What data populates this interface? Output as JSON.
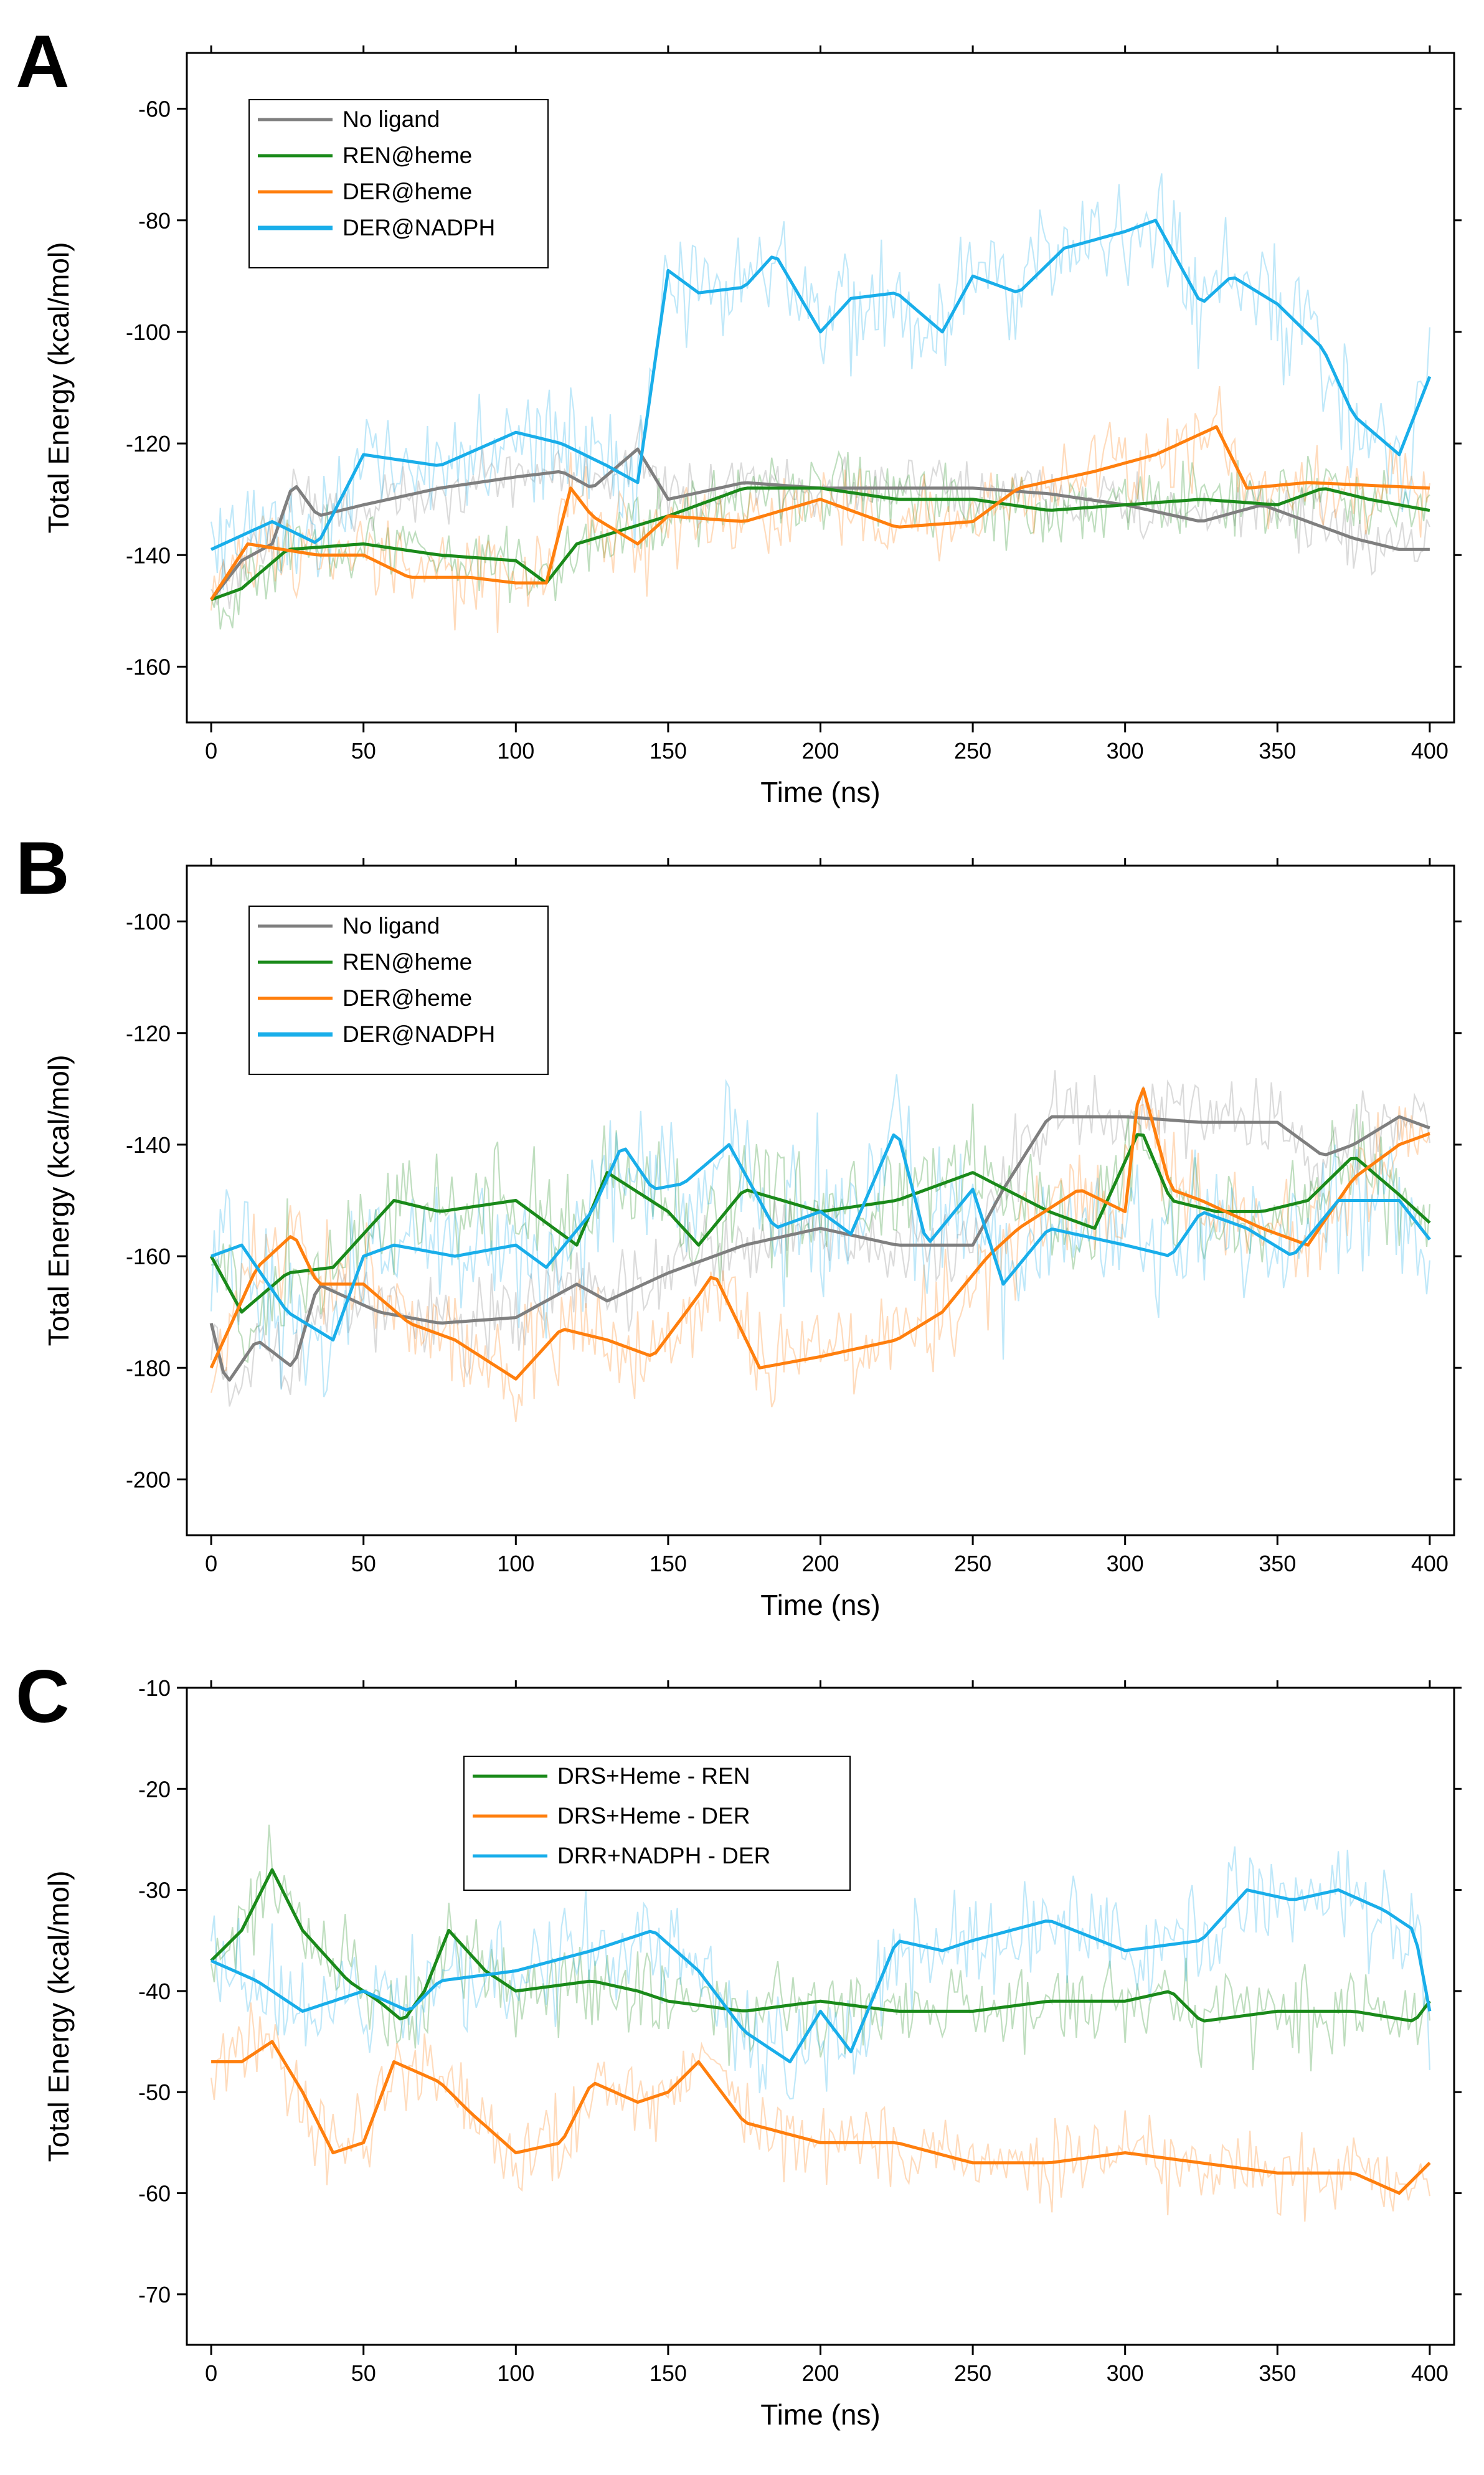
{
  "figure": {
    "panels": [
      "A",
      "B",
      "C"
    ]
  },
  "chart_data": [
    {
      "panel": "A",
      "type": "line",
      "xlabel": "Time (ns)",
      "ylabel": "Total Energy (kcal/mol)",
      "xlim": [
        -8,
        408
      ],
      "ylim": [
        -170,
        -50
      ],
      "xticks": [
        0,
        50,
        100,
        150,
        200,
        250,
        300,
        350,
        400
      ],
      "yticks": [
        -160,
        -140,
        -120,
        -100,
        -80,
        -60
      ],
      "legend": "top-left",
      "series": [
        {
          "name": "No ligand",
          "color": "#7f7f7f",
          "noise": 5,
          "x": [
            0,
            10,
            20,
            27,
            35,
            50,
            75,
            100,
            115,
            125,
            140,
            150,
            175,
            200,
            225,
            250,
            275,
            300,
            325,
            345,
            360,
            375,
            390,
            400
          ],
          "y": [
            -148,
            -141,
            -138,
            -127,
            -133,
            -131,
            -128,
            -126,
            -125,
            -128,
            -121,
            -130,
            -127,
            -128,
            -128,
            -128,
            -129,
            -131,
            -134,
            -131,
            -134,
            -137,
            -139,
            -139
          ]
        },
        {
          "name": "REN@heme",
          "color": "#1a8a1a",
          "noise": 6,
          "x": [
            0,
            10,
            25,
            50,
            75,
            100,
            110,
            120,
            150,
            175,
            200,
            225,
            250,
            275,
            300,
            325,
            350,
            365,
            380,
            400
          ],
          "y": [
            -148,
            -146,
            -139,
            -138,
            -140,
            -141,
            -145,
            -138,
            -133,
            -128,
            -128,
            -130,
            -130,
            -132,
            -131,
            -130,
            -131,
            -128,
            -130,
            -132
          ]
        },
        {
          "name": "DER@heme",
          "color": "#ff7f0e",
          "noise": 7,
          "x": [
            0,
            12,
            35,
            50,
            65,
            85,
            100,
            110,
            118,
            125,
            140,
            150,
            175,
            200,
            225,
            250,
            265,
            290,
            310,
            330,
            340,
            360,
            400
          ],
          "y": [
            -148,
            -138,
            -140,
            -140,
            -144,
            -144,
            -145,
            -145,
            -128,
            -133,
            -138,
            -133,
            -134,
            -130,
            -135,
            -134,
            -128,
            -125,
            -122,
            -117,
            -128,
            -127,
            -128
          ]
        },
        {
          "name": "DER@NADPH",
          "color": "#19aeea",
          "noise": 10,
          "x": [
            0,
            20,
            35,
            50,
            75,
            100,
            115,
            130,
            140,
            150,
            160,
            175,
            185,
            200,
            210,
            225,
            240,
            250,
            265,
            280,
            300,
            310,
            325,
            335,
            350,
            365,
            375,
            390,
            400
          ],
          "y": [
            -139,
            -134,
            -138,
            -122,
            -124,
            -118,
            -120,
            -124,
            -127,
            -89,
            -93,
            -92,
            -86,
            -100,
            -94,
            -93,
            -100,
            -90,
            -93,
            -85,
            -82,
            -80,
            -95,
            -90,
            -95,
            -103,
            -115,
            -122,
            -108
          ]
        }
      ]
    },
    {
      "panel": "B",
      "type": "line",
      "xlabel": "Time (ns)",
      "ylabel": "Total Energy (kcal/mol)",
      "xlim": [
        -8,
        408
      ],
      "ylim": [
        -210,
        -90
      ],
      "xticks": [
        0,
        50,
        100,
        150,
        200,
        250,
        300,
        350,
        400
      ],
      "yticks": [
        -200,
        -180,
        -160,
        -140,
        -120,
        -100
      ],
      "legend": "top-left",
      "series": [
        {
          "name": "No ligand",
          "color": "#7f7f7f",
          "noise": 7,
          "x": [
            0,
            5,
            15,
            27,
            35,
            55,
            75,
            100,
            120,
            130,
            150,
            175,
            200,
            225,
            250,
            260,
            275,
            300,
            325,
            350,
            365,
            375,
            390,
            400
          ],
          "y": [
            -172,
            -183,
            -175,
            -180,
            -165,
            -170,
            -172,
            -171,
            -165,
            -168,
            -163,
            -158,
            -155,
            -158,
            -158,
            -148,
            -135,
            -135,
            -136,
            -136,
            -142,
            -140,
            -135,
            -137
          ]
        },
        {
          "name": "REN@heme",
          "color": "#1a8a1a",
          "noise": 9,
          "x": [
            0,
            10,
            25,
            40,
            60,
            75,
            100,
            120,
            130,
            150,
            160,
            175,
            200,
            225,
            250,
            275,
            290,
            305,
            315,
            330,
            345,
            360,
            375,
            390,
            400
          ],
          "y": [
            -160,
            -170,
            -163,
            -162,
            -150,
            -152,
            -150,
            -158,
            -145,
            -152,
            -158,
            -148,
            -152,
            -150,
            -145,
            -152,
            -155,
            -137,
            -150,
            -152,
            -152,
            -150,
            -142,
            -149,
            -154
          ]
        },
        {
          "name": "DER@heme",
          "color": "#ff7f0e",
          "noise": 9,
          "x": [
            0,
            15,
            27,
            35,
            50,
            65,
            80,
            100,
            115,
            130,
            145,
            160,
            165,
            180,
            200,
            225,
            240,
            255,
            265,
            285,
            300,
            305,
            315,
            325,
            345,
            360,
            375,
            390,
            400
          ],
          "y": [
            -180,
            -162,
            -156,
            -165,
            -165,
            -172,
            -175,
            -182,
            -173,
            -175,
            -178,
            -167,
            -163,
            -180,
            -178,
            -175,
            -170,
            -160,
            -155,
            -148,
            -152,
            -128,
            -148,
            -150,
            -155,
            -158,
            -146,
            -140,
            -138
          ]
        },
        {
          "name": "DER@NADPH",
          "color": "#19aeea",
          "noise": 12,
          "x": [
            0,
            10,
            25,
            40,
            50,
            60,
            80,
            100,
            110,
            125,
            135,
            145,
            155,
            170,
            185,
            200,
            210,
            225,
            235,
            250,
            260,
            275,
            300,
            315,
            325,
            340,
            355,
            370,
            390,
            400
          ],
          "y": [
            -160,
            -158,
            -170,
            -175,
            -160,
            -158,
            -160,
            -158,
            -162,
            -152,
            -140,
            -148,
            -147,
            -140,
            -155,
            -152,
            -156,
            -137,
            -158,
            -148,
            -165,
            -155,
            -158,
            -160,
            -152,
            -155,
            -160,
            -150,
            -150,
            -157
          ]
        }
      ]
    },
    {
      "panel": "C",
      "type": "line",
      "xlabel": "Time (ns)",
      "ylabel": "Total Energy (kcal/mol)",
      "xlim": [
        -8,
        408
      ],
      "ylim": [
        -75,
        -10
      ],
      "xticks": [
        0,
        50,
        100,
        150,
        200,
        250,
        300,
        350,
        400
      ],
      "yticks": [
        -70,
        -60,
        -50,
        -40,
        -30,
        -20,
        -10
      ],
      "legend": "top-center",
      "series": [
        {
          "name": "DRS+Heme - REN",
          "color": "#1a8a1a",
          "noise": 4,
          "x": [
            0,
            10,
            20,
            30,
            45,
            55,
            63,
            70,
            78,
            90,
            100,
            125,
            140,
            150,
            175,
            200,
            225,
            250,
            275,
            300,
            315,
            325,
            350,
            375,
            395,
            400
          ],
          "y": [
            -37,
            -34,
            -28,
            -34,
            -39,
            -41,
            -43,
            -40,
            -34,
            -38,
            -40,
            -39,
            -40,
            -41,
            -42,
            -41,
            -42,
            -42,
            -41,
            -41,
            -40,
            -43,
            -42,
            -42,
            -43,
            -41
          ]
        },
        {
          "name": "DRS+Heme - DER",
          "color": "#ff7f0e",
          "noise": 4,
          "x": [
            0,
            10,
            20,
            30,
            40,
            50,
            60,
            75,
            85,
            100,
            115,
            125,
            140,
            150,
            160,
            175,
            200,
            225,
            250,
            275,
            300,
            325,
            350,
            375,
            390,
            400
          ],
          "y": [
            -47,
            -47,
            -45,
            -50,
            -56,
            -55,
            -47,
            -49,
            -52,
            -56,
            -55,
            -49,
            -51,
            -50,
            -47,
            -53,
            -55,
            -55,
            -57,
            -57,
            -56,
            -57,
            -58,
            -58,
            -60,
            -57
          ]
        },
        {
          "name": "DRR+NADPH - DER",
          "color": "#19aeea",
          "noise": 5,
          "x": [
            0,
            15,
            30,
            50,
            65,
            75,
            100,
            125,
            145,
            160,
            175,
            190,
            200,
            210,
            225,
            240,
            250,
            275,
            300,
            325,
            340,
            355,
            370,
            385,
            395,
            400
          ],
          "y": [
            -37,
            -39,
            -42,
            -40,
            -42,
            -39,
            -38,
            -36,
            -34,
            -38,
            -44,
            -47,
            -42,
            -46,
            -35,
            -36,
            -35,
            -33,
            -36,
            -35,
            -30,
            -31,
            -30,
            -32,
            -34,
            -42
          ]
        }
      ]
    }
  ]
}
